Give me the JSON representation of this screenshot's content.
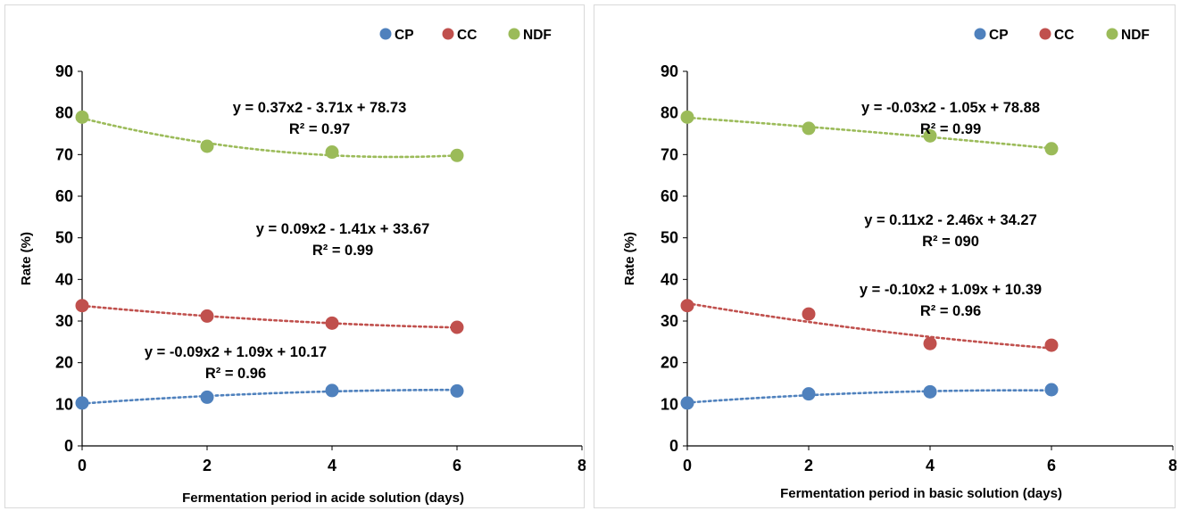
{
  "colors": {
    "CP": "#4F81BD",
    "CC": "#C0504D",
    "NDF": "#9BBB59"
  },
  "chart_data": [
    {
      "type": "scatter",
      "title": "",
      "xlabel": "Fermentation period in acide solution (days)",
      "ylabel": "Rate (%)",
      "xlim": [
        0,
        8
      ],
      "ylim": [
        0,
        90
      ],
      "xticks": [
        "0",
        "2",
        "4",
        "6",
        "8"
      ],
      "yticks": [
        "0",
        "10",
        "20",
        "30",
        "40",
        "50",
        "60",
        "70",
        "80",
        "90"
      ],
      "grid": false,
      "legend_position": "top-right",
      "x": [
        0,
        2,
        4,
        6
      ],
      "series": [
        {
          "name": "CP",
          "color": "#4F81BD",
          "values": [
            10.3,
            11.7,
            13.3,
            13.2
          ],
          "trendline": {
            "a": -0.09,
            "b": 1.09,
            "c": 10.17
          },
          "equation": "y = -0.09x2 + 1.09x + 10.17",
          "r2": "R² = 0.96"
        },
        {
          "name": "CC",
          "color": "#C0504D",
          "values": [
            33.7,
            31.2,
            29.5,
            28.5
          ],
          "trendline": {
            "a": 0.09,
            "b": -1.41,
            "c": 33.67
          },
          "equation": "y = 0.09x2 - 1.41x + 33.67",
          "r2": "R² = 0.99"
        },
        {
          "name": "NDF",
          "color": "#9BBB59",
          "values": [
            79.0,
            72.0,
            70.6,
            69.8
          ],
          "trendline": {
            "a": 0.37,
            "b": -3.71,
            "c": 78.73
          },
          "equation": "y = 0.37x2 - 3.71x + 78.73",
          "r2": "R² = 0.97"
        }
      ]
    },
    {
      "type": "scatter",
      "title": "",
      "xlabel": "Fermentation period in basic solution (days)",
      "ylabel": "Rate (%)",
      "xlim": [
        0,
        8
      ],
      "ylim": [
        0,
        90
      ],
      "xticks": [
        "0",
        "2",
        "4",
        "6",
        "8"
      ],
      "yticks": [
        "0",
        "10",
        "20",
        "30",
        "40",
        "50",
        "60",
        "70",
        "80",
        "90"
      ],
      "grid": false,
      "legend_position": "top-right",
      "x": [
        0,
        2,
        4,
        6
      ],
      "series": [
        {
          "name": "CP",
          "color": "#4F81BD",
          "values": [
            10.3,
            12.5,
            13.0,
            13.5
          ],
          "trendline": {
            "a": -0.1,
            "b": 1.09,
            "c": 10.39
          },
          "equation": "y = -0.10x2 + 1.09x + 10.39",
          "r2": "R² = 0.96"
        },
        {
          "name": "CC",
          "color": "#C0504D",
          "values": [
            33.7,
            31.7,
            24.6,
            24.2
          ],
          "trendline": {
            "a": 0.11,
            "b": -2.46,
            "c": 34.27
          },
          "equation": "y = 0.11x2 - 2.46x + 34.27",
          "r2": "R² = 090"
        },
        {
          "name": "NDF",
          "color": "#9BBB59",
          "values": [
            79.0,
            76.3,
            74.5,
            71.4
          ],
          "trendline": {
            "a": -0.03,
            "b": -1.05,
            "c": 78.88
          },
          "equation": "y = -0.03x2 - 1.05x + 78.88",
          "r2": "R² = 0.99"
        }
      ]
    }
  ]
}
